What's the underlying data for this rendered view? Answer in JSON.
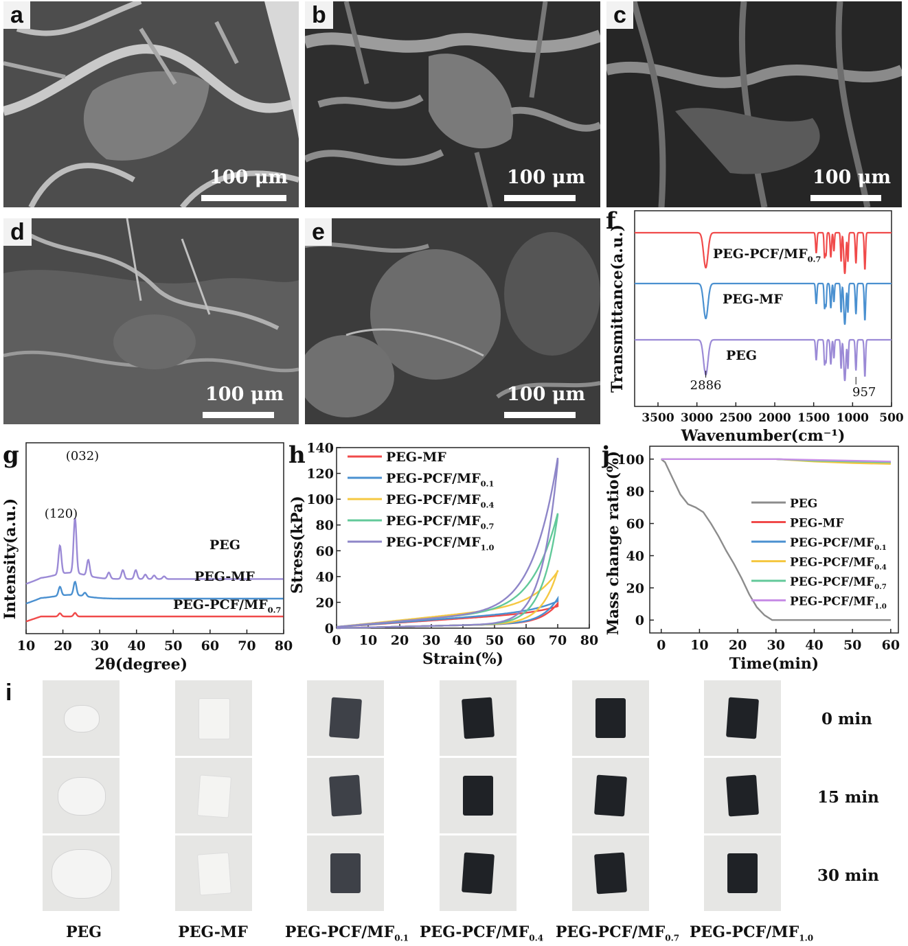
{
  "sem_panels": [
    {
      "label": "a",
      "scale": "100 μm"
    },
    {
      "label": "b",
      "scale": "100 μm"
    },
    {
      "label": "c",
      "scale": "100 μm"
    },
    {
      "label": "d",
      "scale": "100 μm"
    },
    {
      "label": "e",
      "scale": "100 μm"
    }
  ],
  "panel_i": {
    "label": "i",
    "rows": [
      "0 min",
      "15 min",
      "30 min"
    ],
    "columns": [
      {
        "base": "PEG",
        "sub": ""
      },
      {
        "base": "PEG-MF",
        "sub": ""
      },
      {
        "base": "PEG-PCF/MF",
        "sub": "0.1"
      },
      {
        "base": "PEG-PCF/MF",
        "sub": "0.4"
      },
      {
        "base": "PEG-PCF/MF",
        "sub": "0.7"
      },
      {
        "base": "PEG-PCF/MF",
        "sub": "1.0"
      }
    ]
  },
  "chart_data": [
    {
      "panel": "f",
      "type": "line",
      "xlabel": "Wavenumber(cm⁻¹)",
      "ylabel": "Transmittance(a.u.)",
      "xlim": [
        3800,
        500
      ],
      "xticks": [
        3500,
        3000,
        2500,
        2000,
        1500,
        1000,
        500
      ],
      "x_reversed": true,
      "series": [
        {
          "name": "PEG-PCF/MF",
          "sub": "0.7",
          "color": "#f04a4a",
          "offset": 2
        },
        {
          "name": "PEG-MF",
          "sub": "",
          "color": "#4a90d0",
          "offset": 1
        },
        {
          "name": "PEG",
          "sub": "",
          "color": "#9b8ad6",
          "offset": 0
        }
      ],
      "peaks": [
        {
          "x": 3800,
          "depth": 0
        },
        {
          "x": 2886,
          "depth": 0.85,
          "width": 40
        },
        {
          "x": 1467,
          "depth": 0.5,
          "width": 12
        },
        {
          "x": 1360,
          "depth": 0.6,
          "width": 10
        },
        {
          "x": 1342,
          "depth": 0.55,
          "width": 10
        },
        {
          "x": 1280,
          "depth": 0.6,
          "width": 12
        },
        {
          "x": 1240,
          "depth": 0.45,
          "width": 10
        },
        {
          "x": 1148,
          "depth": 0.7,
          "width": 10
        },
        {
          "x": 1100,
          "depth": 1.0,
          "width": 18
        },
        {
          "x": 1060,
          "depth": 0.7,
          "width": 10
        },
        {
          "x": 957,
          "depth": 0.75,
          "width": 12
        },
        {
          "x": 842,
          "depth": 0.9,
          "width": 12
        }
      ],
      "annotations": [
        "2886",
        "957"
      ]
    },
    {
      "panel": "g",
      "type": "line",
      "xlabel": "2θ(degree)",
      "ylabel": "Intensity(a.u.)",
      "xlim": [
        10,
        80
      ],
      "xticks": [
        10,
        20,
        30,
        40,
        50,
        60,
        70,
        80
      ],
      "series": [
        {
          "name": "PEG",
          "sub": "",
          "color": "#9b8ad6",
          "base": 2.1,
          "peaks": [
            [
              19.2,
              1.6
            ],
            [
              23.3,
              3.1
            ],
            [
              26.9,
              0.9
            ],
            [
              32.5,
              0.35
            ],
            [
              36.3,
              0.5
            ],
            [
              39.8,
              0.5
            ],
            [
              42.4,
              0.25
            ],
            [
              44.8,
              0.2
            ],
            [
              47.5,
              0.15
            ]
          ]
        },
        {
          "name": "PEG-MF",
          "sub": "",
          "color": "#4a90d0",
          "base": 1.0,
          "peaks": [
            [
              19.2,
              0.5
            ],
            [
              23.3,
              0.75
            ],
            [
              26.0,
              0.2
            ]
          ]
        },
        {
          "name": "PEG-PCF/MF",
          "sub": "0.7",
          "color": "#f04a4a",
          "base": 0.0,
          "peaks": [
            [
              19.2,
              0.18
            ],
            [
              23.3,
              0.2
            ]
          ]
        }
      ],
      "annotations": [
        "(120)",
        "(032)"
      ]
    },
    {
      "panel": "h",
      "type": "line",
      "xlabel": "Strain(%)",
      "ylabel": "Stress(kPa)",
      "xlim": [
        0,
        80
      ],
      "ylim": [
        0,
        140
      ],
      "xticks": [
        0,
        10,
        20,
        30,
        40,
        50,
        60,
        70,
        80
      ],
      "yticks": [
        0,
        20,
        40,
        60,
        80,
        100,
        120,
        140
      ],
      "series": [
        {
          "name": "PEG-MF",
          "sub": "",
          "color": "#f04a4a",
          "peak": 16,
          "mid": 9
        },
        {
          "name": "PEG-PCF/MF",
          "sub": "0.1",
          "color": "#4a90d0",
          "peak": 20,
          "mid": 10
        },
        {
          "name": "PEG-PCF/MF",
          "sub": "0.4",
          "color": "#f5c842",
          "peak": 43,
          "mid": 14
        },
        {
          "name": "PEG-PCF/MF",
          "sub": "0.7",
          "color": "#62c99a",
          "peak": 88,
          "mid": 12
        },
        {
          "name": "PEG-PCF/MF",
          "sub": "1.0",
          "color": "#8e86c8",
          "peak": 131,
          "mid": 12
        }
      ]
    },
    {
      "panel": "j",
      "type": "line",
      "xlabel": "Time(min)",
      "ylabel": "Mass change ratio(%)",
      "xlim": [
        -3,
        62
      ],
      "ylim": [
        -8,
        108
      ],
      "xticks": [
        0,
        10,
        20,
        30,
        40,
        50,
        60
      ],
      "yticks": [
        0,
        20,
        40,
        60,
        80,
        100
      ],
      "series": [
        {
          "name": "PEG",
          "sub": "",
          "color": "#8c8c8c",
          "x": [
            0,
            1,
            3,
            5,
            7,
            9,
            11,
            13,
            15,
            17,
            19,
            21,
            23,
            25,
            27,
            29,
            31,
            40,
            50,
            60
          ],
          "y": [
            100,
            98,
            88,
            78,
            72,
            70,
            67,
            60,
            52,
            43,
            35,
            26,
            16,
            8,
            3,
            0,
            0,
            0,
            0,
            0
          ]
        },
        {
          "name": "PEG-MF",
          "sub": "",
          "color": "#f04a4a",
          "x": [
            0,
            30,
            40,
            50,
            60
          ],
          "y": [
            100,
            100,
            99,
            98.5,
            98
          ]
        },
        {
          "name": "PEG-PCF/MF",
          "sub": "0.1",
          "color": "#4a90d0",
          "x": [
            0,
            30,
            40,
            50,
            60
          ],
          "y": [
            100,
            100,
            99,
            98.5,
            98
          ]
        },
        {
          "name": "PEG-PCF/MF",
          "sub": "0.4",
          "color": "#f5c842",
          "x": [
            0,
            30,
            40,
            50,
            60
          ],
          "y": [
            100,
            100,
            98.5,
            97.5,
            97
          ]
        },
        {
          "name": "PEG-PCF/MF",
          "sub": "0.7",
          "color": "#62c99a",
          "x": [
            0,
            30,
            40,
            50,
            60
          ],
          "y": [
            100,
            100,
            99,
            98.5,
            98
          ]
        },
        {
          "name": "PEG-PCF/MF",
          "sub": "1.0",
          "color": "#c88ee6",
          "x": [
            0,
            30,
            40,
            50,
            60
          ],
          "y": [
            100,
            100,
            99.5,
            99,
            98.5
          ]
        }
      ]
    }
  ]
}
